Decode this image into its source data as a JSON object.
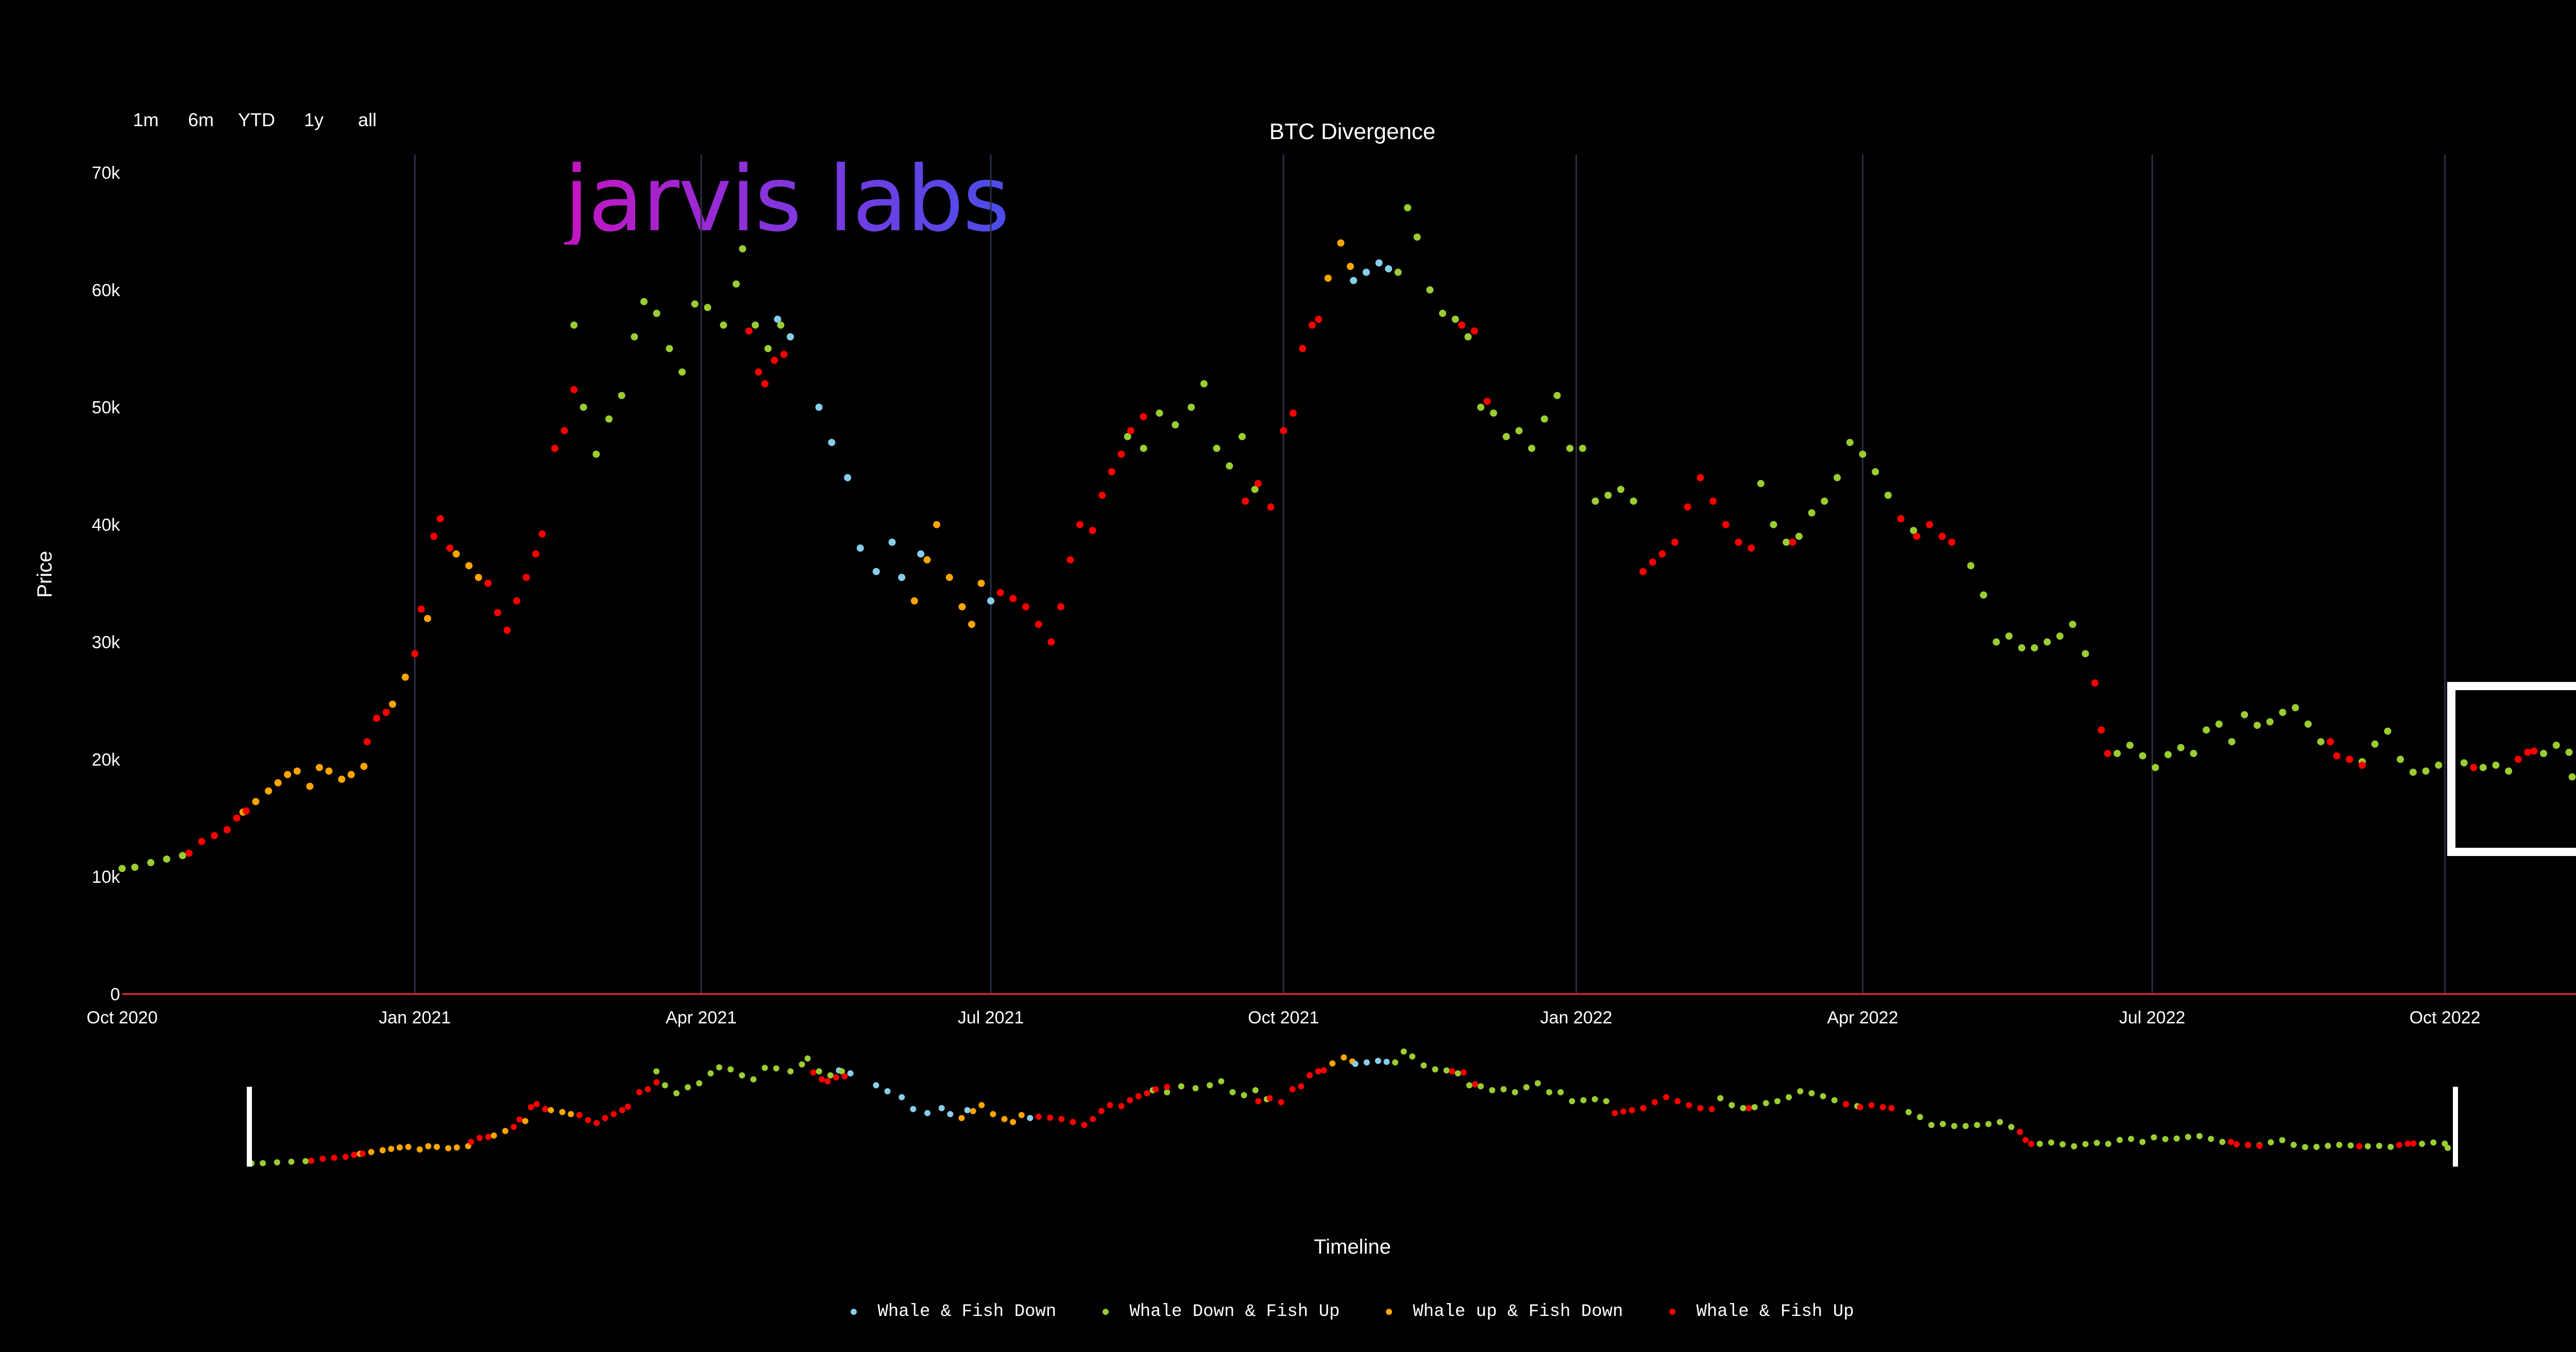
{
  "range_selector": [
    "1m",
    "6m",
    "YTD",
    "1y",
    "all"
  ],
  "logo_text": "jarvis labs",
  "colors": {
    "Whale & Fish Down": "#87ceeb",
    "Whale Down & Fish Up": "#9acd32",
    "Whale up & Fish Down": "#ffa500",
    "Whale & Fish Up": "#ff0000",
    "background": "#000000",
    "grid": "#2a2f45",
    "zero_line": "#c0242c"
  },
  "chart_data": {
    "type": "scatter",
    "title": "BTC Divergence",
    "ylabel": "Price",
    "xlabel": "Timeline",
    "y_ticks": [
      "0",
      "10k",
      "20k",
      "30k",
      "40k",
      "50k",
      "60k",
      "70k"
    ],
    "ylim": [
      0,
      70000
    ],
    "x_ticks": [
      "Oct 2020",
      "Jan 2021",
      "Apr 2021",
      "Jul 2021",
      "Oct 2021",
      "Jan 2022",
      "Apr 2022",
      "Jul 2022",
      "Oct 2022"
    ],
    "xlim": [
      "2020-10-01",
      "2022-11-12"
    ],
    "grid": "vertical",
    "legend_position": "bottom",
    "series": [
      {
        "name": "Whale & Fish Down",
        "points": [
          [
            "2021-04-25",
            57500
          ],
          [
            "2021-04-29",
            56000
          ],
          [
            "2021-05-08",
            50000
          ],
          [
            "2021-05-12",
            47000
          ],
          [
            "2021-05-17",
            44000
          ],
          [
            "2021-05-21",
            38000
          ],
          [
            "2021-05-26",
            36000
          ],
          [
            "2021-05-31",
            38500
          ],
          [
            "2021-06-03",
            35500
          ],
          [
            "2021-06-09",
            37500
          ],
          [
            "2021-07-01",
            33500
          ],
          [
            "2021-10-23",
            60800
          ],
          [
            "2021-10-27",
            61500
          ],
          [
            "2021-10-31",
            62300
          ],
          [
            "2021-11-03",
            61800
          ]
        ]
      },
      {
        "name": "Whale Down & Fish Up",
        "points": [
          [
            "2020-10-01",
            10700
          ],
          [
            "2020-10-05",
            10800
          ],
          [
            "2020-10-10",
            11200
          ],
          [
            "2020-10-15",
            11500
          ],
          [
            "2020-10-20",
            11800
          ],
          [
            "2021-02-20",
            57000
          ],
          [
            "2021-02-23",
            50000
          ],
          [
            "2021-02-27",
            46000
          ],
          [
            "2021-03-03",
            49000
          ],
          [
            "2021-03-07",
            51000
          ],
          [
            "2021-03-11",
            56000
          ],
          [
            "2021-03-14",
            59000
          ],
          [
            "2021-03-18",
            58000
          ],
          [
            "2021-03-22",
            55000
          ],
          [
            "2021-03-26",
            53000
          ],
          [
            "2021-03-30",
            58800
          ],
          [
            "2021-04-03",
            58500
          ],
          [
            "2021-04-08",
            57000
          ],
          [
            "2021-04-12",
            60500
          ],
          [
            "2021-04-14",
            63500
          ],
          [
            "2021-04-18",
            57000
          ],
          [
            "2021-04-22",
            55000
          ],
          [
            "2021-04-26",
            57000
          ],
          [
            "2021-08-13",
            47500
          ],
          [
            "2021-08-18",
            46500
          ],
          [
            "2021-08-23",
            49500
          ],
          [
            "2021-08-28",
            48500
          ],
          [
            "2021-09-02",
            50000
          ],
          [
            "2021-09-06",
            52000
          ],
          [
            "2021-09-10",
            46500
          ],
          [
            "2021-09-14",
            45000
          ],
          [
            "2021-09-18",
            47500
          ],
          [
            "2021-09-22",
            43000
          ],
          [
            "2021-11-06",
            61500
          ],
          [
            "2021-11-09",
            67000
          ],
          [
            "2021-11-12",
            64500
          ],
          [
            "2021-11-16",
            60000
          ],
          [
            "2021-11-20",
            58000
          ],
          [
            "2021-11-24",
            57500
          ],
          [
            "2021-11-28",
            56000
          ],
          [
            "2021-12-02",
            50000
          ],
          [
            "2021-12-06",
            49500
          ],
          [
            "2021-12-10",
            47500
          ],
          [
            "2021-12-14",
            48000
          ],
          [
            "2021-12-18",
            46500
          ],
          [
            "2021-12-22",
            49000
          ],
          [
            "2021-12-26",
            51000
          ],
          [
            "2021-12-30",
            46500
          ],
          [
            "2022-01-03",
            46500
          ],
          [
            "2022-01-07",
            42000
          ],
          [
            "2022-01-11",
            42500
          ],
          [
            "2022-01-15",
            43000
          ],
          [
            "2022-01-19",
            42000
          ],
          [
            "2022-02-28",
            43500
          ],
          [
            "2022-03-04",
            40000
          ],
          [
            "2022-03-08",
            38500
          ],
          [
            "2022-03-12",
            39000
          ],
          [
            "2022-03-16",
            41000
          ],
          [
            "2022-03-20",
            42000
          ],
          [
            "2022-03-24",
            44000
          ],
          [
            "2022-03-28",
            47000
          ],
          [
            "2022-04-01",
            46000
          ],
          [
            "2022-04-05",
            44500
          ],
          [
            "2022-04-09",
            42500
          ],
          [
            "2022-04-13",
            40500
          ],
          [
            "2022-04-17",
            39500
          ],
          [
            "2022-05-05",
            36500
          ],
          [
            "2022-05-09",
            34000
          ],
          [
            "2022-05-13",
            30000
          ],
          [
            "2022-05-17",
            30500
          ],
          [
            "2022-05-21",
            29500
          ],
          [
            "2022-05-25",
            29500
          ],
          [
            "2022-05-29",
            30000
          ],
          [
            "2022-06-02",
            30500
          ],
          [
            "2022-06-06",
            31500
          ],
          [
            "2022-06-10",
            29000
          ],
          [
            "2022-06-20",
            20500
          ],
          [
            "2022-06-24",
            21200
          ],
          [
            "2022-06-28",
            20300
          ],
          [
            "2022-07-02",
            19300
          ],
          [
            "2022-07-06",
            20400
          ],
          [
            "2022-07-10",
            21000
          ],
          [
            "2022-07-14",
            20500
          ],
          [
            "2022-07-18",
            22500
          ],
          [
            "2022-07-22",
            23000
          ],
          [
            "2022-07-26",
            21500
          ],
          [
            "2022-07-30",
            23800
          ],
          [
            "2022-08-03",
            22900
          ],
          [
            "2022-08-07",
            23200
          ],
          [
            "2022-08-11",
            24000
          ],
          [
            "2022-08-15",
            24400
          ],
          [
            "2022-08-19",
            23000
          ],
          [
            "2022-08-23",
            21500
          ],
          [
            "2022-09-01",
            20000
          ],
          [
            "2022-09-05",
            19800
          ],
          [
            "2022-09-09",
            21300
          ],
          [
            "2022-09-13",
            22400
          ],
          [
            "2022-09-17",
            20000
          ],
          [
            "2022-09-21",
            18900
          ],
          [
            "2022-09-25",
            19000
          ],
          [
            "2022-09-29",
            19500
          ],
          [
            "2022-10-03",
            20000
          ],
          [
            "2022-10-07",
            19700
          ],
          [
            "2022-10-13",
            19300
          ],
          [
            "2022-10-17",
            19500
          ],
          [
            "2022-10-21",
            19000
          ],
          [
            "2022-11-01",
            20500
          ],
          [
            "2022-11-05",
            21200
          ],
          [
            "2022-11-09",
            20600
          ],
          [
            "2022-11-10",
            18500
          ]
        ]
      },
      {
        "name": "Whale up & Fish Down",
        "points": [
          [
            "2020-11-08",
            15500
          ],
          [
            "2020-11-12",
            16400
          ],
          [
            "2020-11-16",
            17300
          ],
          [
            "2020-11-19",
            18000
          ],
          [
            "2020-11-22",
            18700
          ],
          [
            "2020-11-25",
            19000
          ],
          [
            "2020-11-29",
            17700
          ],
          [
            "2020-12-02",
            19300
          ],
          [
            "2020-12-05",
            19000
          ],
          [
            "2020-12-09",
            18300
          ],
          [
            "2020-12-12",
            18700
          ],
          [
            "2020-12-16",
            19400
          ],
          [
            "2020-12-25",
            24700
          ],
          [
            "2020-12-29",
            27000
          ],
          [
            "2021-01-05",
            32000
          ],
          [
            "2021-01-14",
            37500
          ],
          [
            "2021-01-18",
            36500
          ],
          [
            "2021-01-21",
            35500
          ],
          [
            "2021-06-14",
            40000
          ],
          [
            "2021-06-11",
            37000
          ],
          [
            "2021-06-07",
            33500
          ],
          [
            "2021-06-18",
            35500
          ],
          [
            "2021-06-22",
            33000
          ],
          [
            "2021-06-25",
            31500
          ],
          [
            "2021-06-28",
            35000
          ],
          [
            "2021-10-15",
            61000
          ],
          [
            "2021-10-19",
            64000
          ],
          [
            "2021-10-22",
            62000
          ]
        ]
      },
      {
        "name": "Whale & Fish Up",
        "points": [
          [
            "2020-10-22",
            12000
          ],
          [
            "2020-10-26",
            13000
          ],
          [
            "2020-10-30",
            13500
          ],
          [
            "2020-11-03",
            14000
          ],
          [
            "2020-11-06",
            15000
          ],
          [
            "2020-11-09",
            15600
          ],
          [
            "2020-12-17",
            21500
          ],
          [
            "2020-12-20",
            23500
          ],
          [
            "2020-12-23",
            24000
          ],
          [
            "2021-01-01",
            29000
          ],
          [
            "2021-01-03",
            32800
          ],
          [
            "2021-01-07",
            39000
          ],
          [
            "2021-01-09",
            40500
          ],
          [
            "2021-01-12",
            38000
          ],
          [
            "2021-01-24",
            35000
          ],
          [
            "2021-01-27",
            32500
          ],
          [
            "2021-01-30",
            31000
          ],
          [
            "2021-02-02",
            33500
          ],
          [
            "2021-02-05",
            35500
          ],
          [
            "2021-02-08",
            37500
          ],
          [
            "2021-02-10",
            39200
          ],
          [
            "2021-02-14",
            46500
          ],
          [
            "2021-02-17",
            48000
          ],
          [
            "2021-02-20",
            51500
          ],
          [
            "2021-04-16",
            56500
          ],
          [
            "2021-04-19",
            53000
          ],
          [
            "2021-04-21",
            52000
          ],
          [
            "2021-04-24",
            54000
          ],
          [
            "2021-04-27",
            54500
          ],
          [
            "2021-07-04",
            34200
          ],
          [
            "2021-07-08",
            33700
          ],
          [
            "2021-07-12",
            33000
          ],
          [
            "2021-07-16",
            31500
          ],
          [
            "2021-07-20",
            30000
          ],
          [
            "2021-07-23",
            33000
          ],
          [
            "2021-07-26",
            37000
          ],
          [
            "2021-07-29",
            40000
          ],
          [
            "2021-08-02",
            39500
          ],
          [
            "2021-08-05",
            42500
          ],
          [
            "2021-08-08",
            44500
          ],
          [
            "2021-08-11",
            46000
          ],
          [
            "2021-08-14",
            48000
          ],
          [
            "2021-08-18",
            49200
          ],
          [
            "2021-09-19",
            42000
          ],
          [
            "2021-09-23",
            43500
          ],
          [
            "2021-09-27",
            41500
          ],
          [
            "2021-10-01",
            48000
          ],
          [
            "2021-10-04",
            49500
          ],
          [
            "2021-10-07",
            55000
          ],
          [
            "2021-10-10",
            57000
          ],
          [
            "2021-10-12",
            57500
          ],
          [
            "2021-11-26",
            57000
          ],
          [
            "2021-11-30",
            56500
          ],
          [
            "2021-12-04",
            50500
          ],
          [
            "2022-01-22",
            36000
          ],
          [
            "2022-01-25",
            36800
          ],
          [
            "2022-01-28",
            37500
          ],
          [
            "2022-02-01",
            38500
          ],
          [
            "2022-02-05",
            41500
          ],
          [
            "2022-02-09",
            44000
          ],
          [
            "2022-02-13",
            42000
          ],
          [
            "2022-02-17",
            40000
          ],
          [
            "2022-02-21",
            38500
          ],
          [
            "2022-02-25",
            38000
          ],
          [
            "2022-03-10",
            38500
          ],
          [
            "2022-04-13",
            40500
          ],
          [
            "2022-04-18",
            39000
          ],
          [
            "2022-04-22",
            40000
          ],
          [
            "2022-04-26",
            39000
          ],
          [
            "2022-04-29",
            38500
          ],
          [
            "2022-06-13",
            26500
          ],
          [
            "2022-06-15",
            22500
          ],
          [
            "2022-06-17",
            20500
          ],
          [
            "2022-08-26",
            21500
          ],
          [
            "2022-08-28",
            20300
          ],
          [
            "2022-09-01",
            20000
          ],
          [
            "2022-09-05",
            19500
          ],
          [
            "2022-10-10",
            19300
          ],
          [
            "2022-10-24",
            20000
          ],
          [
            "2022-10-27",
            20600
          ],
          [
            "2022-10-29",
            20700
          ]
        ]
      }
    ]
  }
}
